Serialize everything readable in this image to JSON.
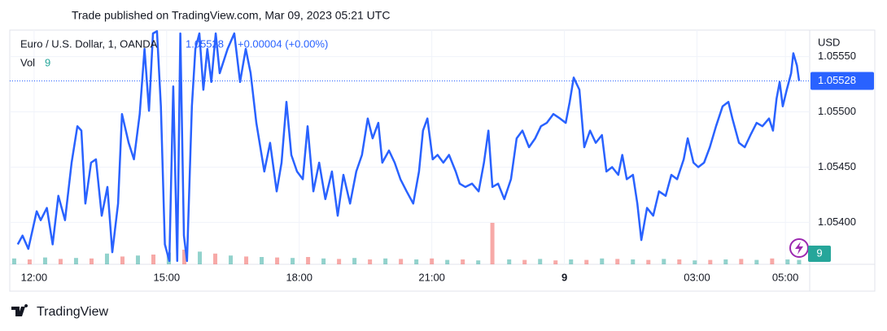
{
  "header": "Trade published on TradingView.com, Mar 09, 2023 05:21 UTC",
  "footer": "TradingView",
  "chart_data": {
    "type": "line",
    "title": "Euro / U.S. Dollar, 1, OANDA",
    "last_price": 1.05528,
    "change": "+0.00004 (+0.00%)",
    "y_axis_label": "USD",
    "volume_label": "Vol",
    "grid": true,
    "xlim": [
      -0.55,
      17.55
    ],
    "xticks": [
      {
        "value": 0,
        "label": "12:00"
      },
      {
        "value": 3,
        "label": "15:00"
      },
      {
        "value": 6,
        "label": "18:00"
      },
      {
        "value": 9,
        "label": "21:00"
      },
      {
        "value": 12,
        "label": "9",
        "bold": true
      },
      {
        "value": 15,
        "label": "03:00"
      },
      {
        "value": 17,
        "label": "05:00"
      }
    ],
    "ylim": [
      1.05362,
      1.05574
    ],
    "yticks": [
      {
        "value": 1.054,
        "label": "1.05400"
      },
      {
        "value": 1.0545,
        "label": "1.05450"
      },
      {
        "value": 1.055,
        "label": "1.05500"
      },
      {
        "value": 1.0555,
        "label": "1.05550"
      }
    ],
    "series": [
      {
        "color": "#2962ff",
        "x": [
          -0.37,
          -0.26,
          -0.13,
          0.06,
          0.15,
          0.29,
          0.42,
          0.55,
          0.7,
          0.85,
          0.98,
          1.07,
          1.16,
          1.29,
          1.4,
          1.53,
          1.66,
          1.77,
          1.9,
          1.99,
          2.14,
          2.26,
          2.39,
          2.5,
          2.6,
          2.69,
          2.78,
          2.87,
          2.96,
          3.06,
          3.15,
          3.24,
          3.31,
          3.39,
          3.46,
          3.57,
          3.65,
          3.74,
          3.83,
          3.92,
          4.01,
          4.11,
          4.2,
          4.38,
          4.53,
          4.66,
          4.79,
          4.9,
          5.03,
          5.12,
          5.21,
          5.34,
          5.49,
          5.6,
          5.71,
          5.82,
          5.95,
          6.08,
          6.19,
          6.32,
          6.45,
          6.59,
          6.74,
          6.87,
          7.0,
          7.15,
          7.29,
          7.42,
          7.55,
          7.66,
          7.79,
          7.88,
          8.03,
          8.16,
          8.29,
          8.43,
          8.58,
          8.71,
          8.8,
          8.9,
          9.02,
          9.13,
          9.26,
          9.39,
          9.54,
          9.63,
          9.76,
          9.91,
          10.06,
          10.18,
          10.28,
          10.37,
          10.5,
          10.64,
          10.79,
          10.92,
          11.05,
          11.2,
          11.34,
          11.47,
          11.6,
          11.75,
          11.9,
          12.03,
          12.12,
          12.21,
          12.34,
          12.45,
          12.58,
          12.71,
          12.85,
          12.95,
          13.08,
          13.22,
          13.31,
          13.41,
          13.55,
          13.65,
          13.74,
          13.87,
          14.01,
          14.14,
          14.29,
          14.42,
          14.55,
          14.7,
          14.79,
          14.92,
          15.03,
          15.16,
          15.29,
          15.43,
          15.58,
          15.71,
          15.8,
          15.95,
          16.08,
          16.21,
          16.35,
          16.48,
          16.63,
          16.72,
          16.8,
          16.87,
          16.94,
          17.03,
          17.13,
          17.18,
          17.26,
          17.31
        ],
        "values": [
          1.0538,
          1.05388,
          1.05376,
          1.0541,
          1.05402,
          1.05413,
          1.0538,
          1.05424,
          1.05402,
          1.05454,
          1.05487,
          1.05483,
          1.05417,
          1.05454,
          1.05457,
          1.05406,
          1.05432,
          1.05373,
          1.05417,
          1.05498,
          1.05472,
          1.05457,
          1.05498,
          1.05557,
          1.05501,
          1.05571,
          1.05573,
          1.05505,
          1.0538,
          1.05365,
          1.05523,
          1.05365,
          1.05571,
          1.05388,
          1.05365,
          1.05505,
          1.05557,
          1.05571,
          1.0552,
          1.05557,
          1.05527,
          1.05571,
          1.05535,
          1.05557,
          1.05571,
          1.05527,
          1.05557,
          1.05535,
          1.0549,
          1.05468,
          1.05446,
          1.05472,
          1.05428,
          1.05454,
          1.05509,
          1.05461,
          1.05446,
          1.05439,
          1.05487,
          1.05428,
          1.05454,
          1.05421,
          1.05446,
          1.05406,
          1.05443,
          1.05417,
          1.05446,
          1.05461,
          1.05494,
          1.05476,
          1.0549,
          1.05454,
          1.05465,
          1.05454,
          1.05439,
          1.05428,
          1.05417,
          1.05446,
          1.05483,
          1.05494,
          1.05457,
          1.05461,
          1.05454,
          1.05461,
          1.05446,
          1.05435,
          1.05432,
          1.05435,
          1.05428,
          1.05454,
          1.05483,
          1.05432,
          1.05435,
          1.05421,
          1.05439,
          1.05476,
          1.05483,
          1.05468,
          1.05476,
          1.05487,
          1.0549,
          1.05498,
          1.05494,
          1.0549,
          1.05509,
          1.05531,
          1.0552,
          1.05468,
          1.05483,
          1.05472,
          1.05479,
          1.05446,
          1.0545,
          1.05443,
          1.05461,
          1.05439,
          1.05443,
          1.05417,
          1.05384,
          1.05413,
          1.05406,
          1.05428,
          1.05424,
          1.05443,
          1.05439,
          1.05457,
          1.05476,
          1.05454,
          1.0545,
          1.05454,
          1.05468,
          1.05487,
          1.05505,
          1.05509,
          1.05494,
          1.05472,
          1.05468,
          1.05479,
          1.0549,
          1.05487,
          1.05494,
          1.05483,
          1.05512,
          1.05527,
          1.05505,
          1.0552,
          1.05535,
          1.05553,
          1.05542,
          1.05528
        ]
      }
    ],
    "volume": {
      "y2lim": [
        0,
        150
      ],
      "x": [
        -0.45,
        -0.1,
        0.25,
        0.6,
        0.95,
        1.3,
        1.65,
        2.0,
        2.35,
        2.7,
        3.05,
        3.4,
        3.75,
        4.1,
        4.45,
        4.8,
        5.15,
        5.5,
        5.85,
        6.2,
        6.55,
        6.9,
        7.25,
        7.6,
        7.95,
        8.3,
        8.65,
        9.0,
        9.35,
        9.7,
        10.05,
        10.37,
        10.75,
        11.1,
        11.45,
        11.8,
        12.15,
        12.5,
        12.85,
        13.2,
        13.55,
        13.9,
        14.25,
        14.6,
        14.95,
        15.3,
        15.65,
        16.0,
        16.35,
        16.7,
        17.05,
        17.31
      ],
      "values": [
        12,
        10,
        14,
        11,
        13,
        12,
        22,
        16,
        18,
        20,
        24,
        30,
        26,
        22,
        18,
        16,
        15,
        14,
        13,
        15,
        12,
        11,
        13,
        10,
        12,
        11,
        10,
        12,
        9,
        10,
        8,
        85,
        10,
        9,
        11,
        8,
        10,
        9,
        12,
        11,
        10,
        9,
        11,
        10,
        8,
        9,
        10,
        11,
        9,
        12,
        10,
        9
      ],
      "colors": [
        "#26a69a",
        "#ef5350",
        "#26a69a",
        "#ef5350",
        "#26a69a",
        "#ef5350",
        "#26a69a",
        "#ef5350",
        "#26a69a",
        "#ef5350",
        "#26a69a",
        "#ef5350",
        "#26a69a",
        "#ef5350",
        "#26a69a",
        "#ef5350",
        "#26a69a",
        "#ef5350",
        "#26a69a",
        "#ef5350",
        "#26a69a",
        "#ef5350",
        "#26a69a",
        "#ef5350",
        "#26a69a",
        "#ef5350",
        "#26a69a",
        "#ef5350",
        "#26a69a",
        "#ef5350",
        "#26a69a",
        "#ef5350",
        "#26a69a",
        "#ef5350",
        "#26a69a",
        "#ef5350",
        "#26a69a",
        "#ef5350",
        "#26a69a",
        "#ef5350",
        "#26a69a",
        "#ef5350",
        "#26a69a",
        "#ef5350",
        "#26a69a",
        "#ef5350",
        "#26a69a",
        "#ef5350",
        "#26a69a",
        "#ef5350",
        "#26a69a",
        "#26a69a"
      ]
    }
  }
}
